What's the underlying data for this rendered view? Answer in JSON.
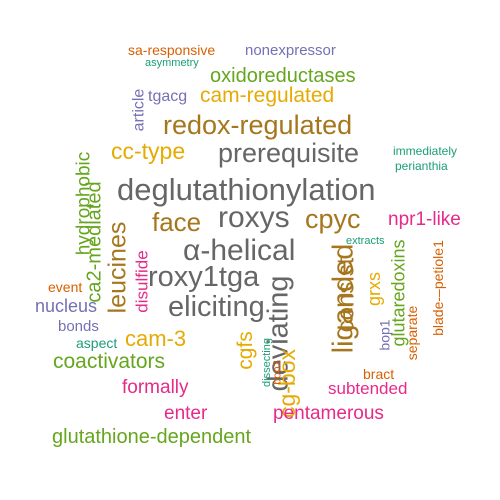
{
  "palette": {
    "teal": "#1b9e77",
    "orange": "#d95f02",
    "purple": "#7570b3",
    "magenta": "#e7298a",
    "green": "#66a61e",
    "gold": "#e6ab02",
    "brown": "#a6761d",
    "gray": "#666666"
  },
  "words": [
    {
      "text": "sa-responsive",
      "color": "#d95f02"
    },
    {
      "text": "nonexpressor",
      "color": "#7570b3"
    },
    {
      "text": "asymmetry",
      "color": "#1b9e77"
    },
    {
      "text": "oxidoreductases",
      "color": "#66a61e"
    },
    {
      "text": "article",
      "color": "#7570b3"
    },
    {
      "text": "tgacg",
      "color": "#7570b3"
    },
    {
      "text": "cam-regulated",
      "color": "#e6ab02"
    },
    {
      "text": "redox-regulated",
      "color": "#a6761d"
    },
    {
      "text": "hydrophobic",
      "color": "#66a61e"
    },
    {
      "text": "cc-type",
      "color": "#e6ab02"
    },
    {
      "text": "prerequisite",
      "color": "#666666"
    },
    {
      "text": "immediately",
      "color": "#1b9e77"
    },
    {
      "text": "perianthia",
      "color": "#1b9e77"
    },
    {
      "text": "deglutathionylation",
      "color": "#666666"
    },
    {
      "text": "ca2-mediated",
      "color": "#66a61e"
    },
    {
      "text": "leucines",
      "color": "#a6761d"
    },
    {
      "text": "face",
      "color": "#a6761d"
    },
    {
      "text": "roxys",
      "color": "#666666"
    },
    {
      "text": "cpyc",
      "color": "#a6761d"
    },
    {
      "text": "npr1-like",
      "color": "#e7298a"
    },
    {
      "text": "disulfide",
      "color": "#e7298a"
    },
    {
      "text": "α-helical",
      "color": "#666666"
    },
    {
      "text": "extracts",
      "color": "#1b9e77"
    },
    {
      "text": "glutaredoxins",
      "color": "#66a61e"
    },
    {
      "text": "blade-–petiole1",
      "color": "#d95f02"
    },
    {
      "text": "event",
      "color": "#d95f02"
    },
    {
      "text": "roxy1tga",
      "color": "#666666"
    },
    {
      "text": "liganded",
      "color": "#a6761d"
    },
    {
      "text": "consist",
      "color": "#a6761d"
    },
    {
      "text": "grxs",
      "color": "#e6ab02"
    },
    {
      "text": "nucleus",
      "color": "#7570b3"
    },
    {
      "text": "eliciting",
      "color": "#666666"
    },
    {
      "text": "deviating",
      "color": "#666666"
    },
    {
      "text": "separate",
      "color": "#d95f02"
    },
    {
      "text": "bonds",
      "color": "#7570b3"
    },
    {
      "text": "cam-3",
      "color": "#e6ab02"
    },
    {
      "text": "cgfs",
      "color": "#e6ab02"
    },
    {
      "text": "bop1",
      "color": "#7570b3"
    },
    {
      "text": "aspect",
      "color": "#1b9e77"
    },
    {
      "text": "dissecting",
      "color": "#1b9e77"
    },
    {
      "text": "cg-box",
      "color": "#e6ab02"
    },
    {
      "text": "coactivators",
      "color": "#66a61e"
    },
    {
      "text": "bop2",
      "color": "#d95f02"
    },
    {
      "text": "bract",
      "color": "#d95f02"
    },
    {
      "text": "formally",
      "color": "#e7298a"
    },
    {
      "text": "subtended",
      "color": "#e7298a"
    },
    {
      "text": "enter",
      "color": "#e7298a"
    },
    {
      "text": "pentamerous",
      "color": "#e7298a"
    },
    {
      "text": "glutathione-dependent",
      "color": "#66a61e"
    }
  ]
}
